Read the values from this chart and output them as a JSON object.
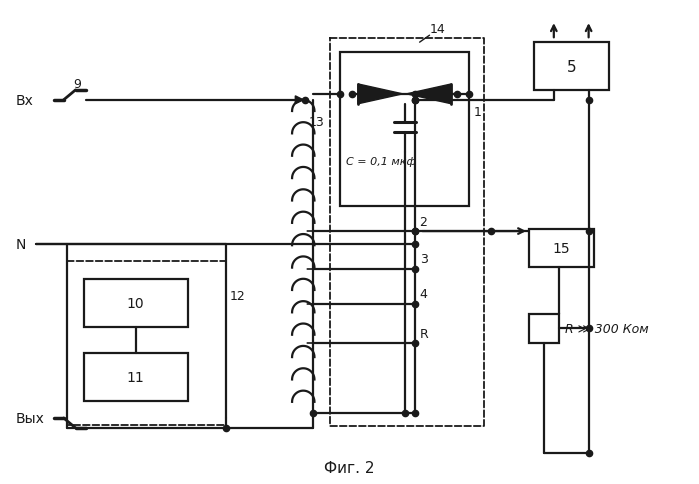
{
  "title": "Фиг. 2",
  "background_color": "#ffffff",
  "line_color": "#1a1a1a",
  "labels": {
    "vx": "Вх",
    "n": "N",
    "vyx": "Вых",
    "num9": "9",
    "num13": "13",
    "num14": "14",
    "num1": "1",
    "num2": "2",
    "num3": "3",
    "num4": "4",
    "numR": "R",
    "num5": "5",
    "num10": "10",
    "num11": "11",
    "num12": "12",
    "num15": "15",
    "c_label": "C = 0,1 мкф",
    "r_label": "R ≫ 300 Ком"
  },
  "figsize": [
    6.99,
    4.85
  ],
  "dpi": 100
}
